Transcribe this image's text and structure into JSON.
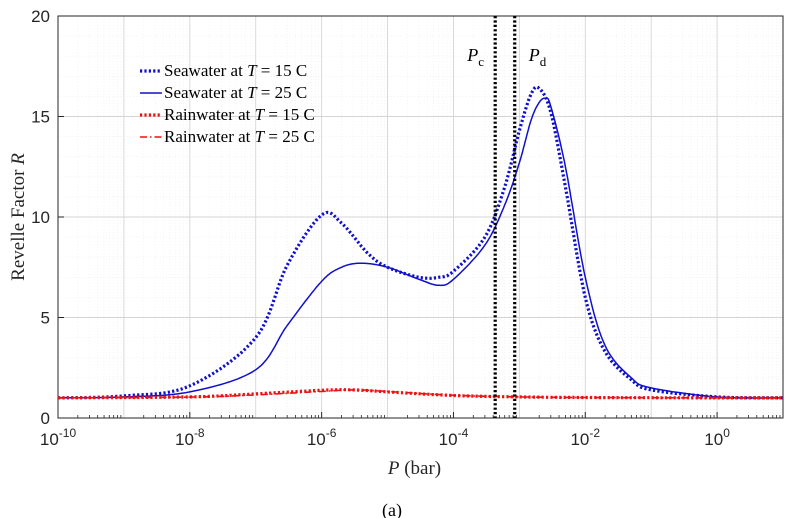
{
  "chart_data": {
    "type": "line",
    "xlabel": "P (bar)",
    "ylabel": "Revelle Factor R",
    "x_scale": "log",
    "xlim": [
      1e-10,
      10
    ],
    "ylim": [
      0,
      20
    ],
    "x_ticks": [
      1e-10,
      1e-08,
      1e-06,
      0.0001,
      0.01,
      1
    ],
    "x_tick_labels": [
      "10-10",
      "10-8",
      "10-6",
      "10-4",
      "10-2",
      "100"
    ],
    "y_ticks": [
      0,
      5,
      10,
      15,
      20
    ],
    "y_tick_labels": [
      "0",
      "5",
      "10",
      "15",
      "20"
    ],
    "grid": true,
    "legend_position": "top-left",
    "series": [
      {
        "name": "Seawater at T = 15 C",
        "color": "#1010cc",
        "style": "dotted",
        "x": [
          1e-10,
          1e-09,
          1e-08,
          1e-07,
          3e-07,
          1e-06,
          2e-06,
          5e-06,
          1e-05,
          3e-05,
          6e-05,
          0.0001,
          0.0003,
          0.0006,
          0.001,
          0.0015,
          0.002,
          0.003,
          0.005,
          0.01,
          0.02,
          0.05,
          0.1,
          1,
          10
        ],
        "y": [
          1.0,
          1.1,
          1.6,
          4.0,
          7.6,
          10.1,
          9.7,
          8.2,
          7.5,
          7.0,
          7.0,
          7.3,
          9.0,
          11.5,
          14.3,
          16.1,
          16.4,
          15.2,
          11.5,
          6.0,
          3.3,
          1.9,
          1.4,
          1.05,
          1.0
        ]
      },
      {
        "name": "Seawater at T = 25 C",
        "color": "#1010cc",
        "style": "solid",
        "x": [
          1e-10,
          1e-09,
          1e-08,
          1e-07,
          3e-07,
          1e-06,
          2e-06,
          4e-06,
          1e-05,
          3e-05,
          6e-05,
          0.0001,
          0.0003,
          0.0006,
          0.001,
          0.0015,
          0.002,
          0.0025,
          0.003,
          0.005,
          0.01,
          0.02,
          0.05,
          0.1,
          1,
          10
        ],
        "y": [
          1.0,
          1.05,
          1.3,
          2.4,
          4.6,
          6.8,
          7.5,
          7.7,
          7.5,
          6.9,
          6.6,
          6.9,
          8.6,
          10.6,
          12.7,
          14.8,
          15.7,
          15.9,
          15.5,
          12.5,
          7.0,
          3.6,
          2.0,
          1.5,
          1.05,
          1.0
        ]
      },
      {
        "name": "Rainwater at T = 15 C",
        "color": "#ee1111",
        "style": "dotted",
        "x": [
          1e-10,
          1e-08,
          1e-07,
          1e-06,
          3e-06,
          1e-05,
          0.0001,
          0.001,
          0.01,
          1,
          10
        ],
        "y": [
          1.0,
          1.05,
          1.2,
          1.38,
          1.4,
          1.3,
          1.12,
          1.05,
          1.02,
          1.0,
          1.0
        ]
      },
      {
        "name": "Rainwater at T = 25 C",
        "color": "#ee1111",
        "style": "dashdot",
        "x": [
          1e-10,
          1e-08,
          1e-07,
          1e-06,
          3e-06,
          1e-05,
          0.0001,
          0.001,
          0.01,
          1,
          10
        ],
        "y": [
          1.0,
          1.04,
          1.15,
          1.32,
          1.4,
          1.32,
          1.13,
          1.05,
          1.02,
          1.0,
          1.0
        ]
      }
    ],
    "vertical_lines": [
      {
        "label": "Pc",
        "x": 0.00043,
        "color": "#000000",
        "style": "dotted"
      },
      {
        "label": "Pd",
        "x": 0.00085,
        "color": "#000000",
        "style": "dotted"
      }
    ]
  },
  "caption": "(a)"
}
